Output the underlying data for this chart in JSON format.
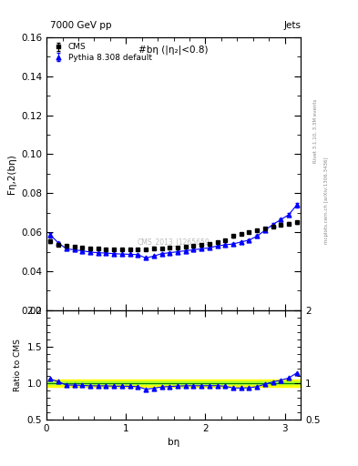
{
  "title_top": "7000 GeV pp",
  "title_right": "Jets",
  "plot_title": "#bη (|η₂|<0.8)",
  "ylabel_main": "Fη,2(bη)",
  "ylabel_ratio": "Ratio to CMS",
  "xlabel": "bη",
  "watermark": "CMS_2013_I1265659",
  "right_label": "Rivet 3.1.10, 3.3M events",
  "right_label2": "mcplots.cern.ch [arXiv:1306.3436]",
  "cms_x": [
    0.05,
    0.15,
    0.25,
    0.35,
    0.45,
    0.55,
    0.65,
    0.75,
    0.85,
    0.95,
    1.05,
    1.15,
    1.25,
    1.35,
    1.45,
    1.55,
    1.65,
    1.75,
    1.85,
    1.95,
    2.05,
    2.15,
    2.25,
    2.35,
    2.45,
    2.55,
    2.65,
    2.75,
    2.85,
    2.95,
    3.05,
    3.15
  ],
  "cms_y": [
    0.0555,
    0.0535,
    0.053,
    0.0525,
    0.0522,
    0.0518,
    0.0515,
    0.0513,
    0.0512,
    0.051,
    0.051,
    0.051,
    0.0512,
    0.0515,
    0.0518,
    0.052,
    0.0522,
    0.0525,
    0.053,
    0.0535,
    0.054,
    0.055,
    0.056,
    0.058,
    0.059,
    0.06,
    0.061,
    0.062,
    0.063,
    0.064,
    0.0645,
    0.065
  ],
  "cms_yerr": [
    0.0008,
    0.0005,
    0.0004,
    0.0004,
    0.0004,
    0.0003,
    0.0003,
    0.0003,
    0.0003,
    0.0003,
    0.0003,
    0.0003,
    0.0003,
    0.0003,
    0.0003,
    0.0003,
    0.0003,
    0.0003,
    0.0004,
    0.0004,
    0.0004,
    0.0004,
    0.0005,
    0.0005,
    0.0005,
    0.0006,
    0.0006,
    0.0006,
    0.0007,
    0.0007,
    0.0008,
    0.0009
  ],
  "py_x": [
    0.05,
    0.15,
    0.25,
    0.35,
    0.45,
    0.55,
    0.65,
    0.75,
    0.85,
    0.95,
    1.05,
    1.15,
    1.25,
    1.35,
    1.45,
    1.55,
    1.65,
    1.75,
    1.85,
    1.95,
    2.05,
    2.15,
    2.25,
    2.35,
    2.45,
    2.55,
    2.65,
    2.75,
    2.85,
    2.95,
    3.05,
    3.15
  ],
  "py_y": [
    0.0585,
    0.0545,
    0.0515,
    0.051,
    0.0505,
    0.0498,
    0.0495,
    0.0493,
    0.049,
    0.0488,
    0.0487,
    0.0485,
    0.0468,
    0.0478,
    0.049,
    0.0495,
    0.05,
    0.0505,
    0.051,
    0.0515,
    0.052,
    0.053,
    0.0535,
    0.054,
    0.055,
    0.056,
    0.058,
    0.061,
    0.064,
    0.0665,
    0.069,
    0.074
  ],
  "py_yerr": [
    0.001,
    0.0006,
    0.0005,
    0.0004,
    0.0004,
    0.0004,
    0.0003,
    0.0003,
    0.0003,
    0.0003,
    0.0003,
    0.0003,
    0.0003,
    0.0003,
    0.0003,
    0.0003,
    0.0003,
    0.0003,
    0.0003,
    0.0003,
    0.0003,
    0.0003,
    0.0004,
    0.0004,
    0.0004,
    0.0005,
    0.0005,
    0.0006,
    0.0007,
    0.0008,
    0.001,
    0.0012
  ],
  "ylim_main": [
    0.02,
    0.16
  ],
  "ylim_ratio": [
    0.5,
    2.0
  ],
  "xlim": [
    0.0,
    3.2
  ],
  "band_yellow_half": 0.05,
  "band_green_half": 0.02,
  "band_yellow_color": "#ffff00",
  "band_green_color": "#adff2f",
  "ref_line_color": "#008000",
  "cms_color": "#000000",
  "py_color": "#0000ff",
  "line_color": "#0000ff"
}
